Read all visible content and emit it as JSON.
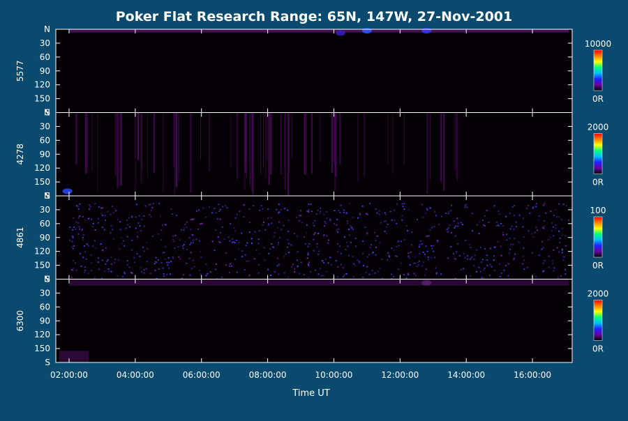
{
  "chart_data": {
    "type": "heatmap",
    "title": "Poker Flat Research Range: 65N, 147W, 27-Nov-2001",
    "xlabel": "Time UT",
    "x_ticks": [
      "02:00:00",
      "04:00:00",
      "06:00:00",
      "08:00:00",
      "10:00:00",
      "12:00:00",
      "14:00:00",
      "16:00:00"
    ],
    "x_tick_hours": [
      2,
      4,
      6,
      8,
      10,
      12,
      14,
      16
    ],
    "x_range_hours": [
      1.6,
      17.2
    ],
    "y_ticks": [
      "N",
      "30",
      "60",
      "90",
      "120",
      "150",
      "S"
    ],
    "y_tick_values": [
      0,
      30,
      60,
      90,
      120,
      150,
      180
    ],
    "y_range": [
      0,
      180
    ],
    "colorbar_colors": [
      "#000000",
      "#6a00a0",
      "#2020ff",
      "#00c0ff",
      "#00ff80",
      "#ffff00",
      "#ff8000",
      "#ff0000"
    ],
    "panels": [
      {
        "ylabel": "5577",
        "colorbar_max": "10000",
        "colorbar_min": "0R",
        "texture": "band",
        "features": [
          {
            "kind": "band",
            "from_deg": 0,
            "to_deg": 7,
            "t_start": 2.0,
            "t_end": 17.1,
            "color": "#5a1a72"
          },
          {
            "kind": "blob",
            "t": 12.8,
            "deg": 3,
            "color": "#3a3aff"
          },
          {
            "kind": "blob",
            "t": 11.0,
            "deg": 3,
            "color": "#2a5aff"
          },
          {
            "kind": "blob",
            "t": 10.2,
            "deg": 8,
            "color": "#3a20c0"
          }
        ]
      },
      {
        "ylabel": "4278",
        "colorbar_max": "2000",
        "colorbar_min": "0R",
        "texture": "stripes",
        "features": [
          {
            "kind": "stripes",
            "t_start": 1.9,
            "t_end": 14.2,
            "color": "#4a0a5a"
          },
          {
            "kind": "blob",
            "t": 1.95,
            "deg": 170,
            "color": "#2a4aff"
          }
        ]
      },
      {
        "ylabel": "4861",
        "colorbar_max": "100",
        "colorbar_min": "0R",
        "texture": "speckle",
        "features": [
          {
            "kind": "speckle",
            "t_start": 2.0,
            "t_end": 17.1,
            "deg_min": 15,
            "deg_max": 178,
            "colors": [
              "#5030d0",
              "#7a2ab0",
              "#3a50ff",
              "#4a1a8a"
            ]
          }
        ]
      },
      {
        "ylabel": "6300",
        "colorbar_max": "2000",
        "colorbar_min": "0R",
        "texture": "band",
        "features": [
          {
            "kind": "band",
            "from_deg": 0,
            "to_deg": 14,
            "t_start": 2.0,
            "t_end": 17.1,
            "color": "#3a0e4a"
          },
          {
            "kind": "blob",
            "t": 12.8,
            "deg": 8,
            "color": "#5a2070"
          },
          {
            "kind": "band",
            "from_deg": 155,
            "to_deg": 180,
            "t_start": 1.7,
            "t_end": 2.6,
            "color": "#3a0e4a"
          }
        ]
      }
    ]
  }
}
